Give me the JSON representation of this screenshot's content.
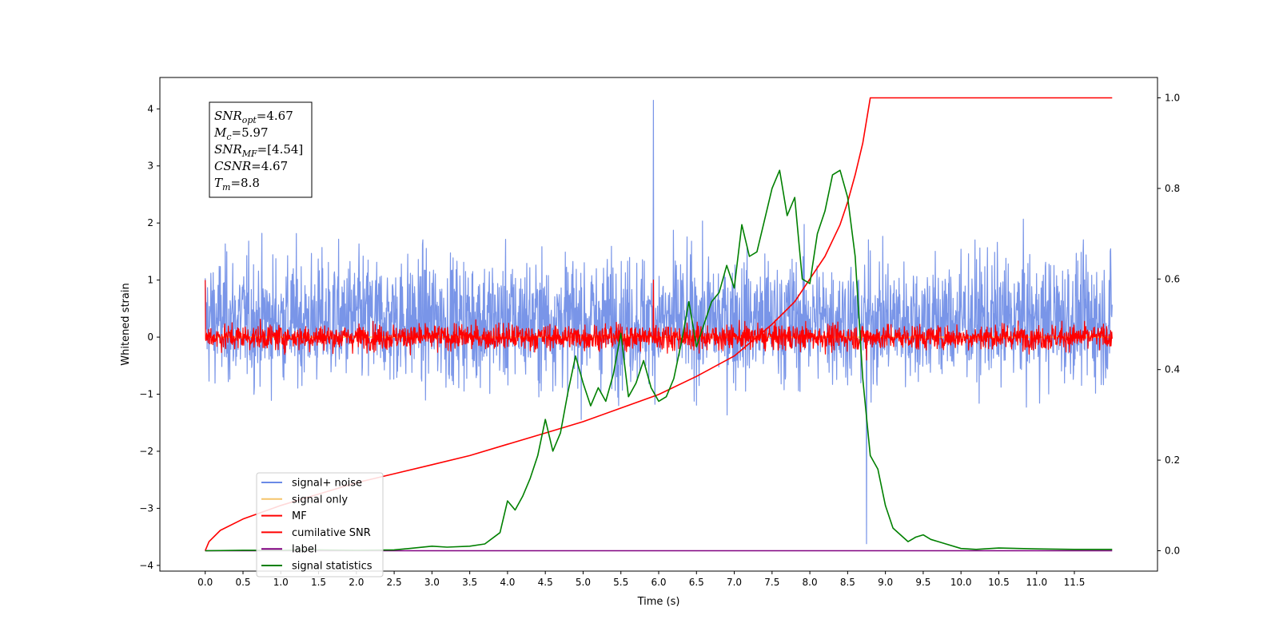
{
  "chart_data": {
    "type": "line",
    "xlabel": "Time (s)",
    "ylabel": "Whitened strain",
    "ylabel_right": "",
    "xlim": [
      -0.6,
      12.6
    ],
    "ylim": [
      -4.1,
      4.55
    ],
    "ylim_right": [
      -0.045,
      1.045
    ],
    "x_ticks": [
      0.0,
      0.5,
      1.0,
      1.5,
      2.0,
      2.5,
      3.0,
      3.5,
      4.0,
      4.5,
      5.0,
      5.5,
      6.0,
      6.5,
      7.0,
      7.5,
      8.0,
      8.5,
      9.0,
      9.5,
      10.0,
      10.5,
      11.0,
      11.5
    ],
    "x_tick_labels": [
      "0.0",
      "0.5",
      "1.0",
      "1.5",
      "2.0",
      "2.5",
      "3.0",
      "3.5",
      "4.0",
      "4.5",
      "5.0",
      "5.5",
      "6.0",
      "6.5",
      "7.0",
      "7.5",
      "8.0",
      "8.5",
      "9.0",
      "9.5",
      "10.0",
      "10.5",
      "11.0",
      "11.5"
    ],
    "y_ticks": [
      -4,
      -3,
      -2,
      -1,
      0,
      1,
      2,
      3,
      4
    ],
    "y_tick_labels": [
      "−4",
      "−3",
      "−2",
      "−1",
      "0",
      "1",
      "2",
      "3",
      "4"
    ],
    "y_right_ticks": [
      0.0,
      0.2,
      0.4,
      0.6,
      0.8,
      1.0
    ],
    "y_right_tick_labels": [
      "0.0",
      "0.2",
      "0.4",
      "0.6",
      "0.8",
      "1.0"
    ],
    "grid": false,
    "legend_position": "lower-left",
    "series": [
      {
        "name": "signal+ noise",
        "axis": "left",
        "color": "#6a8ae6",
        "kind": "noise",
        "x_range": [
          0.0,
          12.0
        ],
        "center": 0.3,
        "amplitude": 1.0,
        "peak_max": 4.15,
        "peak_min": -3.62
      },
      {
        "name": "signal only",
        "axis": "left",
        "color": "#f5c46a",
        "kind": "flat",
        "x_range": [
          0.0,
          12.0
        ],
        "value": 0.0
      },
      {
        "name": "MF",
        "axis": "left",
        "color": "#ff0000",
        "kind": "noise",
        "x_range": [
          0.0,
          12.0
        ],
        "center": 0.0,
        "amplitude": 0.2,
        "peak_max": 1.0,
        "peak_min": -0.4
      },
      {
        "name": "cumilative SNR",
        "axis": "right",
        "color": "#ff0000",
        "x": [
          0.0,
          0.05,
          0.2,
          0.5,
          1.0,
          1.5,
          2.0,
          2.5,
          3.0,
          3.5,
          4.0,
          4.5,
          5.0,
          5.5,
          6.0,
          6.5,
          7.0,
          7.5,
          7.8,
          8.0,
          8.2,
          8.4,
          8.5,
          8.6,
          8.7,
          8.75,
          8.8,
          9.0,
          10.0,
          11.0,
          12.0
        ],
        "y": [
          0.0,
          0.02,
          0.045,
          0.07,
          0.1,
          0.125,
          0.15,
          0.17,
          0.19,
          0.21,
          0.235,
          0.26,
          0.285,
          0.315,
          0.345,
          0.385,
          0.43,
          0.5,
          0.55,
          0.6,
          0.65,
          0.72,
          0.77,
          0.83,
          0.9,
          0.95,
          1.0,
          1.0,
          1.0,
          1.0,
          1.0
        ]
      },
      {
        "name": "label",
        "axis": "right",
        "color": "#800080",
        "x": [
          0.0,
          12.0
        ],
        "y": [
          0.0,
          0.0
        ]
      },
      {
        "name": "signal statistics",
        "axis": "right",
        "color": "#008000",
        "x": [
          0.0,
          0.5,
          1.0,
          1.5,
          2.0,
          2.5,
          2.7,
          3.0,
          3.2,
          3.5,
          3.7,
          3.9,
          4.0,
          4.1,
          4.2,
          4.3,
          4.4,
          4.5,
          4.6,
          4.7,
          4.8,
          4.9,
          5.0,
          5.1,
          5.2,
          5.3,
          5.4,
          5.5,
          5.6,
          5.7,
          5.8,
          5.9,
          6.0,
          6.1,
          6.2,
          6.3,
          6.4,
          6.5,
          6.6,
          6.7,
          6.8,
          6.9,
          7.0,
          7.1,
          7.2,
          7.3,
          7.4,
          7.5,
          7.6,
          7.7,
          7.8,
          7.9,
          8.0,
          8.1,
          8.2,
          8.3,
          8.4,
          8.5,
          8.6,
          8.7,
          8.8,
          8.9,
          9.0,
          9.1,
          9.2,
          9.3,
          9.4,
          9.5,
          9.6,
          9.7,
          9.8,
          10.0,
          10.2,
          10.5,
          11.0,
          11.5,
          12.0
        ],
        "y": [
          0.0,
          0.001,
          0.001,
          0.002,
          0.001,
          0.002,
          0.005,
          0.01,
          0.008,
          0.01,
          0.015,
          0.04,
          0.11,
          0.09,
          0.12,
          0.16,
          0.21,
          0.29,
          0.22,
          0.26,
          0.35,
          0.43,
          0.37,
          0.32,
          0.36,
          0.33,
          0.39,
          0.48,
          0.34,
          0.37,
          0.42,
          0.36,
          0.33,
          0.34,
          0.38,
          0.46,
          0.55,
          0.45,
          0.5,
          0.55,
          0.57,
          0.63,
          0.58,
          0.72,
          0.65,
          0.66,
          0.73,
          0.8,
          0.84,
          0.74,
          0.78,
          0.6,
          0.59,
          0.7,
          0.75,
          0.83,
          0.84,
          0.78,
          0.65,
          0.38,
          0.21,
          0.18,
          0.1,
          0.05,
          0.035,
          0.02,
          0.03,
          0.035,
          0.025,
          0.02,
          0.015,
          0.005,
          0.003,
          0.006,
          0.004,
          0.003,
          0.003
        ]
      }
    ],
    "annotation": [
      {
        "base": "SNR",
        "sub": "opt",
        "value": "=4.67"
      },
      {
        "base": "M",
        "sub": "c",
        "value": "=5.97"
      },
      {
        "base": "SNR",
        "sub": "MF",
        "value": "=[4.54]"
      },
      {
        "base": "CSNR",
        "sub": "",
        "value": "=4.67"
      },
      {
        "base": "T",
        "sub": "m",
        "value": "=8.8"
      }
    ]
  }
}
